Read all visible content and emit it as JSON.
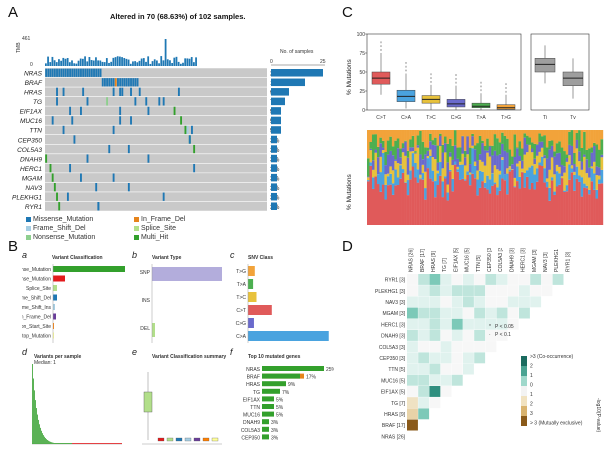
{
  "panels": {
    "A": "A",
    "B": "B",
    "C": "C",
    "D": "D"
  },
  "panelA": {
    "title": "Altered in 70 (68.63%) of 102 samples.",
    "tmb_label": "TMB",
    "tmb_max": "461",
    "tmb_min": "0",
    "nsamples_label": "No. of samples",
    "nsamples_ticks": [
      "0",
      "25"
    ],
    "genes": [
      "NRAS",
      "BRAF",
      "HRAS",
      "TG",
      "EIF1AX",
      "MUC16",
      "TTN",
      "CEP350",
      "COL5A3",
      "DNAH9",
      "HERC1",
      "MGAM",
      "NAV3",
      "PLEKHG1",
      "RYR1"
    ],
    "percents": [
      "25%",
      "17%",
      "9%",
      "7%",
      "5%",
      "5%",
      "5%",
      "3%",
      "3%",
      "3%",
      "3%",
      "3%",
      "3%",
      "3%",
      "3%"
    ],
    "counts": [
      26,
      17,
      9,
      7,
      5,
      5,
      5,
      3,
      3,
      3,
      3,
      3,
      3,
      3,
      3
    ],
    "legend": [
      {
        "label": "Missense_Mutation",
        "color": "#1f78b4"
      },
      {
        "label": "In_Frame_Del",
        "color": "#e6841c"
      },
      {
        "label": "Frame_Shift_Del",
        "color": "#a6cee3"
      },
      {
        "label": "Splice_Site",
        "color": "#b2df8a"
      },
      {
        "label": "Nonsense_Mutation",
        "color": "#8ecf8e"
      },
      {
        "label": "Multi_Hit",
        "color": "#33a02c"
      }
    ]
  },
  "panelB": {
    "a": {
      "letter": "a",
      "title": "Variant Classification",
      "rows": [
        "Missense_Mutation",
        "Nonsense_Mutation",
        "Splice_Site",
        "Frame_Shift_Del",
        "Frame_Shift_Ins",
        "In_Frame_Del",
        "Translation_Start_Site",
        "Nonstop_Mutation"
      ],
      "values": [
        72,
        12,
        4,
        4,
        2,
        3,
        1,
        1
      ]
    },
    "b": {
      "letter": "b",
      "title": "Variant Type",
      "rows": [
        "SNP",
        "INS",
        "DEL"
      ]
    },
    "c": {
      "letter": "c",
      "title": "SNV Class",
      "rows": [
        "T>G",
        "T>A",
        "T>C",
        "C>T",
        "C>G",
        "C>A"
      ],
      "values": [
        8,
        6,
        10,
        28,
        7,
        95
      ]
    },
    "d": {
      "letter": "d",
      "title": "Variants per sample",
      "subtitle": "Median: 1"
    },
    "e": {
      "letter": "e",
      "title": "Variant Classification summary"
    },
    "f": {
      "letter": "f",
      "title": "Top 10 mutated genes",
      "genes": [
        "NRAS",
        "BRAF",
        "HRAS",
        "TG",
        "EIF1AX",
        "TTN",
        "MUC16",
        "DNAH9",
        "COL5A3",
        "CEP350"
      ],
      "pct": [
        "25%",
        "17%",
        "9%",
        "7%",
        "5%",
        "5%",
        "5%",
        "3%",
        "3%",
        "3%"
      ]
    }
  },
  "panelC": {
    "ylabel": "% Mutations",
    "yticks": [
      "0",
      "25",
      "50",
      "75",
      "100"
    ],
    "classes": [
      "C>T",
      "C>A",
      "T>C",
      "C>G",
      "T>A",
      "T>G"
    ],
    "medians": [
      42,
      18,
      14,
      8,
      5,
      3
    ],
    "q1": [
      34,
      11,
      9,
      4,
      3,
      1
    ],
    "q3": [
      50,
      26,
      19,
      14,
      9,
      7
    ],
    "lo": [
      20,
      2,
      0,
      0,
      0,
      0
    ],
    "hi": [
      75,
      48,
      33,
      32,
      22,
      20
    ],
    "colors": [
      "#e05a5a",
      "#4aa3df",
      "#e8c23c",
      "#6a6acc",
      "#4caf50",
      "#f2a33a"
    ],
    "titv_labels": [
      "Ti",
      "Tv"
    ],
    "titv_med": [
      60,
      42
    ],
    "titv_q1": [
      50,
      32
    ],
    "titv_q3": [
      68,
      50
    ],
    "titv_lo": [
      35,
      15
    ],
    "titv_hi": [
      85,
      68
    ]
  },
  "panelD": {
    "genes": [
      "NRAS [26]",
      "BRAF [17]",
      "HRAS [9]",
      "TG [7]",
      "EIF1AX [5]",
      "MUC16 [5]",
      "TTN [5]",
      "CEP350 [3]",
      "COL5A3 [3]",
      "DNAH9 [3]",
      "HERC1 [3]",
      "MGAM [3]",
      "NAV3 [3]",
      "PLEKHG1 [3]",
      "RYR1 [3]"
    ],
    "legend_ticks": [
      ">3 (Co-occurrence)",
      "2",
      "1",
      "0",
      "1",
      "2",
      "3",
      "> 3 (Mutually exclusive)"
    ],
    "axis_label": "-log10(P-value)",
    "sig_labels": [
      "P < 0.05",
      "P < 0.1"
    ]
  }
}
